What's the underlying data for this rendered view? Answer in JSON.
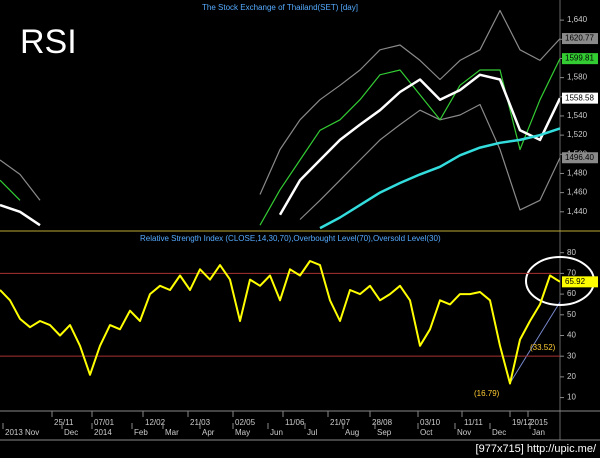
{
  "chart_data": [
    {
      "type": "line",
      "label": "RSI",
      "title": "The Stock Exchange of Thailand(SET) [day]",
      "x": [
        0,
        2,
        4,
        6,
        8,
        10,
        12,
        14,
        16,
        18,
        20,
        22,
        24,
        26,
        28,
        30,
        32,
        34,
        36,
        38,
        40,
        42,
        44,
        46,
        48,
        50,
        52,
        54,
        56
      ],
      "xlim": [
        0,
        56
      ],
      "ylim": [
        1421,
        1661
      ],
      "yticks": [
        {
          "value": 1440,
          "label": "1,440"
        },
        {
          "value": 1460,
          "label": "1,460"
        },
        {
          "value": 1480,
          "label": "1,480"
        },
        {
          "value": 1500,
          "label": "1,500"
        },
        {
          "value": 1520,
          "label": "1,520"
        },
        {
          "value": 1540,
          "label": "1,540"
        },
        {
          "value": 1560,
          "label": "1,560"
        },
        {
          "value": 1580,
          "label": "1,580"
        },
        {
          "value": 1600,
          "label": "1,600"
        },
        {
          "value": 1620,
          "label": "1,620"
        },
        {
          "value": 1640,
          "label": "1,640"
        }
      ],
      "series": [
        {
          "color": "#8a8a8a",
          "values": [
            1494,
            1479,
            1452,
            null,
            null,
            null,
            null,
            null,
            null,
            null,
            null,
            null,
            null,
            1458,
            1505,
            1536,
            1557,
            1572,
            1588,
            1609,
            1614,
            1598,
            1578,
            1598,
            1609,
            1650,
            1609,
            1598,
            1620.77
          ],
          "value_labels": [
            null,
            null,
            null,
            null,
            null,
            null,
            null,
            null,
            null,
            null,
            null,
            null,
            null,
            null,
            null,
            null,
            null,
            null,
            null,
            null,
            null,
            null,
            null,
            null,
            null,
            null,
            null,
            null,
            "1620.77"
          ]
        },
        {
          "color": "#8a8a8a",
          "values": [
            1432,
            null,
            null,
            null,
            null,
            null,
            null,
            null,
            null,
            null,
            null,
            null,
            null,
            null,
            null,
            1432,
            1452,
            1473,
            1494,
            1515,
            1531,
            1546,
            1536,
            1541,
            1552,
            1505,
            1442,
            1452,
            1496.4
          ],
          "value_labels": [
            null,
            null,
            null,
            null,
            null,
            null,
            null,
            null,
            null,
            null,
            null,
            null,
            null,
            null,
            null,
            null,
            null,
            null,
            null,
            null,
            null,
            null,
            null,
            null,
            null,
            null,
            null,
            null,
            "1496.40"
          ]
        },
        {
          "color": "#33cc33",
          "values": [
            1473,
            1452,
            null,
            null,
            null,
            null,
            null,
            null,
            null,
            null,
            null,
            null,
            null,
            1426,
            1463,
            1494,
            1525,
            1536,
            1557,
            1583,
            1588,
            1562,
            1536,
            1572,
            1588,
            1588,
            1505,
            1557,
            1599.81
          ],
          "value_labels": [
            null,
            null,
            null,
            null,
            null,
            null,
            null,
            null,
            null,
            null,
            null,
            null,
            null,
            null,
            null,
            null,
            null,
            null,
            null,
            null,
            null,
            null,
            null,
            null,
            null,
            null,
            null,
            null,
            "1599.81"
          ]
        },
        {
          "color": "#ffffff",
          "values": [
            1447,
            1440,
            1426,
            null,
            null,
            null,
            null,
            null,
            null,
            null,
            null,
            null,
            null,
            null,
            1437,
            1473,
            1494,
            1515,
            1531,
            1546,
            1565,
            1578,
            1557,
            1567,
            1583,
            1578,
            1525,
            1515,
            1558.58
          ],
          "value_labels": [
            null,
            null,
            null,
            null,
            null,
            null,
            null,
            null,
            null,
            null,
            null,
            null,
            null,
            null,
            null,
            null,
            null,
            null,
            null,
            null,
            null,
            null,
            null,
            null,
            null,
            null,
            null,
            null,
            "1558.58"
          ]
        },
        {
          "color": "#33dddd",
          "values": [
            null,
            null,
            null,
            null,
            null,
            null,
            null,
            null,
            null,
            null,
            null,
            null,
            null,
            null,
            null,
            null,
            1423,
            1434,
            1447,
            1460,
            1470,
            1479,
            1487,
            1499,
            1507,
            1512,
            1515,
            1520,
            1527
          ]
        }
      ]
    },
    {
      "type": "line",
      "title": "Relative Strength Index (CLOSE,14,30,70),Overbought Level(70),Oversold Level(30)",
      "x": [
        0,
        1,
        2,
        3,
        4,
        5,
        6,
        7,
        8,
        9,
        10,
        11,
        12,
        13,
        14,
        15,
        16,
        17,
        18,
        19,
        20,
        21,
        22,
        23,
        24,
        25,
        26,
        27,
        28,
        29,
        30,
        31,
        32,
        33,
        34,
        35,
        36,
        37,
        38,
        39,
        40,
        41,
        42,
        43,
        44,
        45,
        46,
        47,
        48,
        49,
        50,
        51,
        52,
        53,
        54,
        55,
        56
      ],
      "xlim": [
        0,
        56
      ],
      "ylim": [
        4,
        90
      ],
      "yticks": [
        10,
        20,
        30,
        40,
        50,
        60,
        70,
        80
      ],
      "levels": [
        70,
        30
      ],
      "series": [
        {
          "color": "#ffff00",
          "values": [
            62,
            57,
            48,
            44,
            47,
            45,
            40,
            45,
            35,
            21,
            35,
            45,
            43,
            52,
            47,
            60,
            64,
            62,
            69,
            62,
            72,
            67,
            74,
            67,
            47,
            67,
            64,
            69,
            57,
            72,
            69,
            76,
            74,
            57,
            47,
            62,
            60,
            64,
            57,
            60,
            64,
            57,
            35,
            43,
            57,
            55,
            60,
            60,
            61,
            57,
            35,
            16.79,
            38,
            47,
            55,
            69,
            65.92
          ],
          "value_labels": [
            null,
            null,
            null,
            null,
            null,
            null,
            null,
            null,
            null,
            null,
            null,
            null,
            null,
            null,
            null,
            null,
            null,
            null,
            null,
            null,
            null,
            null,
            null,
            null,
            null,
            null,
            null,
            null,
            null,
            null,
            null,
            null,
            null,
            null,
            null,
            null,
            null,
            null,
            null,
            null,
            null,
            null,
            null,
            null,
            null,
            null,
            null,
            null,
            null,
            null,
            null,
            null,
            null,
            null,
            null,
            null,
            "65.92"
          ]
        }
      ],
      "annotations": [
        "(16.79)",
        "(33.52)"
      ],
      "date_ticks": [
        {
          "value": 5.2,
          "label": "25/11"
        },
        {
          "value": 9.2,
          "label": "07/01"
        },
        {
          "value": 14.3,
          "label": "12/02"
        },
        {
          "value": 18.8,
          "label": "21/03"
        },
        {
          "value": 23.3,
          "label": "02/05"
        },
        {
          "value": 28.3,
          "label": "11/06"
        },
        {
          "value": 32.8,
          "label": "21/07"
        },
        {
          "value": 37,
          "label": "28/08"
        },
        {
          "value": 41.8,
          "label": "03/10"
        },
        {
          "value": 46.2,
          "label": "11/11"
        },
        {
          "value": 51,
          "label": "19/12"
        },
        {
          "value": 52.8,
          "label": "2015"
        }
      ],
      "month_ticks": [
        {
          "value": 0.3,
          "label": "2013 Nov"
        },
        {
          "value": 6.2,
          "label": "Dec"
        },
        {
          "value": 9.2,
          "label": "2014"
        },
        {
          "value": 13.2,
          "label": "Feb"
        },
        {
          "value": 16.3,
          "label": "Mar"
        },
        {
          "value": 20,
          "label": "Apr"
        },
        {
          "value": 23.3,
          "label": "May"
        },
        {
          "value": 26.8,
          "label": "Jun"
        },
        {
          "value": 30.5,
          "label": "Jul"
        },
        {
          "value": 34.3,
          "label": "Aug"
        },
        {
          "value": 37.5,
          "label": "Sep"
        },
        {
          "value": 41.8,
          "label": "Oct"
        },
        {
          "value": 45.5,
          "label": "Nov"
        },
        {
          "value": 49,
          "label": "Dec"
        },
        {
          "value": 53,
          "label": "Jan"
        }
      ]
    }
  ],
  "footer": "[977x715] http://upic.me/"
}
